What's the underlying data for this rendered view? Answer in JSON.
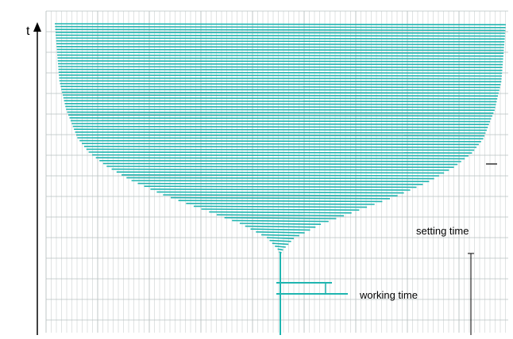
{
  "chart_data": {
    "type": "line",
    "description_labels": {
      "y_axis_label": "t",
      "setting_time_label": "setting time",
      "working_time_label": "working time"
    },
    "trace": {
      "name": "",
      "color": "#1fb5b0",
      "amplitude_envelope": [
        {
          "row": 0,
          "amplitude": 1.0
        },
        {
          "row": 10,
          "amplitude": 0.99
        },
        {
          "row": 20,
          "amplitude": 0.98
        },
        {
          "row": 30,
          "amplitude": 0.95
        },
        {
          "row": 40,
          "amplitude": 0.9
        },
        {
          "row": 45,
          "amplitude": 0.85
        },
        {
          "row": 50,
          "amplitude": 0.77
        },
        {
          "row": 55,
          "amplitude": 0.66
        },
        {
          "row": 60,
          "amplitude": 0.52
        },
        {
          "row": 65,
          "amplitude": 0.35
        },
        {
          "row": 70,
          "amplitude": 0.18
        },
        {
          "row": 75,
          "amplitude": 0.06
        },
        {
          "row": 80,
          "amplitude": 0.0
        }
      ]
    },
    "grid": true,
    "grid_color": "#b9c1c1",
    "axis_color": "#000000"
  }
}
